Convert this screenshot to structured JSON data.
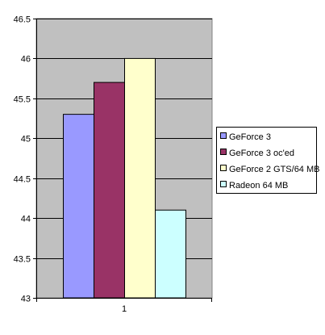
{
  "chart_data": {
    "type": "bar",
    "categories": [
      "1"
    ],
    "series": [
      {
        "name": "GeForce 3",
        "values": [
          45.3
        ],
        "color": "#9999ff"
      },
      {
        "name": "GeForce 3 oc'ed",
        "values": [
          45.7
        ],
        "color": "#993366"
      },
      {
        "name": "GeForce 2 GTS/64 MB",
        "values": [
          46.0
        ],
        "color": "#ffffcc"
      },
      {
        "name": "Radeon 64 MB",
        "values": [
          44.1
        ],
        "color": "#ccffff"
      }
    ],
    "title": "",
    "xlabel": "",
    "ylabel": "",
    "ylim": [
      43,
      46.5
    ],
    "yticks": [
      "43",
      "43.5",
      "44",
      "44.5",
      "45",
      "45.5",
      "46",
      "46.5"
    ],
    "grid": true,
    "legend_position": "right",
    "plot_background": "#c0c0c0",
    "gridline_color": "#000000"
  }
}
